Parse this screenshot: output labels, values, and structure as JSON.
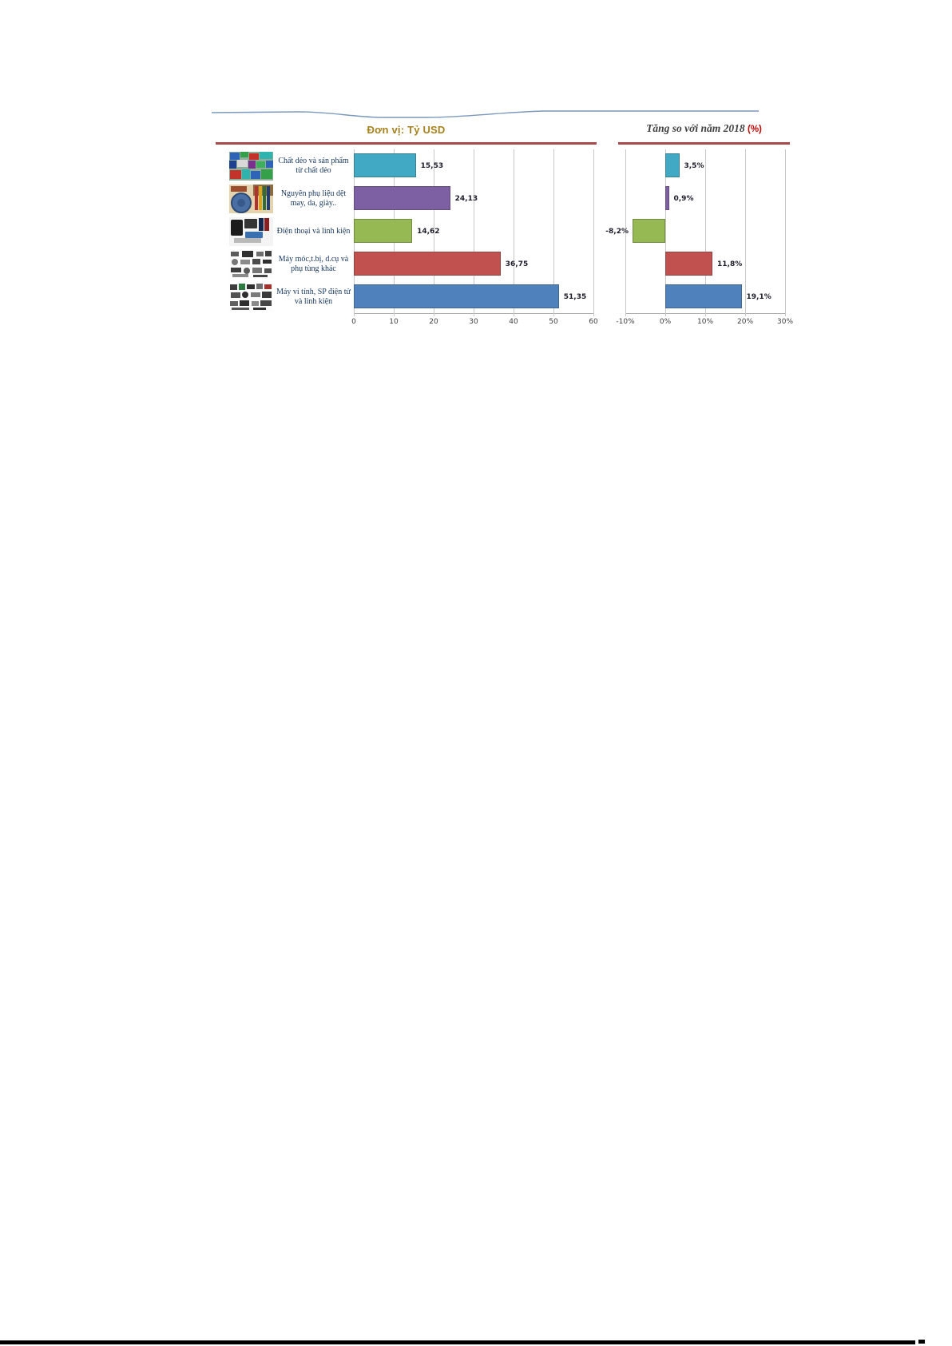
{
  "header": {
    "left_panel_title": "Đơn vị: Tỷ USD",
    "right_panel_title": "Tăng so với năm 2018",
    "right_panel_title_unit": "(%)",
    "underline_color": "#a84a4c",
    "left_title_color": "#a5821e",
    "unit_color": "#c00000"
  },
  "thumbnails": [
    "plastic-products-photo",
    "textile-materials-photo",
    "phones-components-photo",
    "machinery-parts-photo",
    "computer-electronics-photo"
  ],
  "chart_data": [
    {
      "type": "bar",
      "orientation": "horizontal",
      "panel": "left",
      "title": "Đơn vị: Tỷ USD",
      "categories": [
        "Chất dẻo và sản phẩm từ chất dẻo",
        "Nguyên phụ liệu dệt may, da, giày..",
        "Điện thoại và linh kiện",
        "Máy móc,t.bị, d.cụ và phụ tùng khác",
        "Máy vi tính, SP điện tử và linh kiện"
      ],
      "values": [
        15.53,
        24.13,
        14.62,
        36.75,
        51.35
      ],
      "value_labels": [
        "15,53",
        "24,13",
        "14,62",
        "36,75",
        "51,35"
      ],
      "bar_colors": [
        "#41a9c4",
        "#7d5fa3",
        "#97b954",
        "#c1514e",
        "#4f81bd"
      ],
      "xlim": [
        0,
        60
      ],
      "x_ticks": [
        "0",
        "10",
        "20",
        "30",
        "40",
        "50",
        "60"
      ],
      "grid": true,
      "xlabel": "",
      "ylabel": ""
    },
    {
      "type": "bar",
      "orientation": "horizontal",
      "panel": "right",
      "title": "Tăng so với năm 2018 (%)",
      "categories": [
        "Chất dẻo và sản phẩm từ chất dẻo",
        "Nguyên phụ liệu dệt may, da, giày..",
        "Điện thoại và linh kiện",
        "Máy móc,t.bị, d.cụ và phụ tùng khác",
        "Máy vi tính, SP điện tử và linh kiện"
      ],
      "values": [
        3.5,
        0.9,
        -8.2,
        11.8,
        19.1
      ],
      "value_labels": [
        "3,5%",
        "0,9%",
        "-8,2%",
        "11,8%",
        "19,1%"
      ],
      "bar_colors": [
        "#41a9c4",
        "#7d5fa3",
        "#97b954",
        "#c1514e",
        "#4f81bd"
      ],
      "xlim": [
        -10,
        30
      ],
      "x_ticks": [
        "-10%",
        "0%",
        "10%",
        "20%",
        "30%"
      ],
      "grid": true,
      "xlabel": "",
      "ylabel": ""
    }
  ]
}
